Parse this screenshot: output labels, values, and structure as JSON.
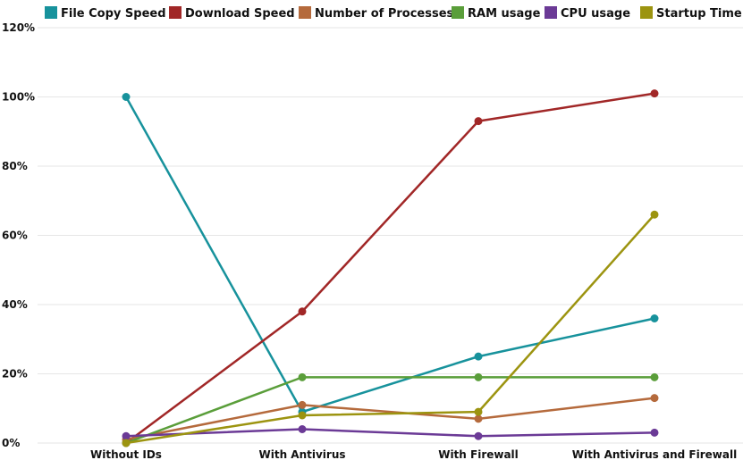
{
  "chart_data": {
    "type": "line",
    "categories": [
      "Without IDs",
      "With Antivirus",
      "With Firewall",
      "With Antivirus and Firewall"
    ],
    "ylim": [
      0,
      120
    ],
    "ytick_values": [
      0,
      20,
      40,
      60,
      80,
      100,
      120
    ],
    "ytick_labels": [
      "0%",
      "20%",
      "40%",
      "60%",
      "80%",
      "100%",
      "120%"
    ],
    "grid": true,
    "legend_position": "top",
    "series": [
      {
        "name": "File Copy Speed",
        "color": "#17929c",
        "values": [
          100,
          9,
          25,
          36
        ]
      },
      {
        "name": "Download Speed",
        "color": "#a12727",
        "values": [
          0,
          38,
          93,
          101
        ]
      },
      {
        "name": "Number of Processes",
        "color": "#b56a3c",
        "values": [
          1,
          11,
          7,
          13
        ]
      },
      {
        "name": "RAM usage",
        "color": "#5a9e3a",
        "values": [
          0,
          19,
          19,
          19
        ]
      },
      {
        "name": "CPU usage",
        "color": "#6b3a96",
        "values": [
          2,
          4,
          2,
          3
        ]
      },
      {
        "name": "Startup Time",
        "color": "#9c9410",
        "values": [
          0,
          8,
          9,
          66
        ]
      }
    ]
  }
}
